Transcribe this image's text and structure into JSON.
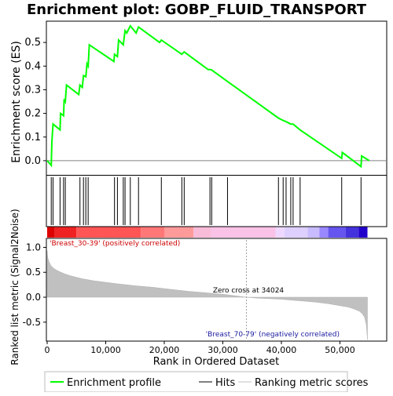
{
  "chart_data": {
    "type": "line",
    "title": "Enrichment plot: GOBP_FLUID_TRANSPORT",
    "top_panel": {
      "ylabel": "Enrichment score (ES)",
      "yticks": [
        "0.0",
        "0.1",
        "0.2",
        "0.3",
        "0.4",
        "0.5"
      ],
      "ylim": [
        -0.06,
        0.59
      ],
      "xlim": [
        0,
        58000
      ],
      "es_curve": {
        "name": "Enrichment profile",
        "color": "#00ff00",
        "x": [
          0,
          700,
          800,
          1000,
          2200,
          2300,
          2800,
          2900,
          3100,
          3300,
          5400,
          5600,
          6000,
          6200,
          6600,
          6800,
          7000,
          7200,
          11400,
          11500,
          12000,
          12200,
          13000,
          13300,
          13600,
          14200,
          15200,
          15600,
          19200,
          19500,
          23000,
          23400,
          27500,
          28000,
          30800,
          39500,
          40300,
          40800,
          41600,
          42000,
          43200,
          50300,
          50400,
          53600,
          53700,
          55000
        ],
        "y": [
          0.0,
          -0.02,
          0.08,
          0.155,
          0.13,
          0.2,
          0.19,
          0.26,
          0.25,
          0.32,
          0.28,
          0.32,
          0.31,
          0.36,
          0.355,
          0.41,
          0.4,
          0.49,
          0.42,
          0.45,
          0.44,
          0.51,
          0.49,
          0.55,
          0.54,
          0.57,
          0.54,
          0.565,
          0.5,
          0.51,
          0.45,
          0.46,
          0.385,
          0.385,
          0.335,
          0.18,
          0.17,
          0.165,
          0.155,
          0.155,
          0.13,
          0.01,
          0.035,
          -0.025,
          0.02,
          0.0
        ]
      },
      "hits": [
        700,
        1000,
        2200,
        2800,
        3100,
        5600,
        6200,
        6600,
        7000,
        11500,
        12000,
        13000,
        13300,
        14200,
        15600,
        19500,
        23000,
        23400,
        27800,
        28100,
        30800,
        39500,
        40300,
        40800,
        41600,
        42000,
        43200,
        50300,
        53600
      ]
    },
    "ranking_bar": {
      "zones": [
        {
          "to": 1300,
          "color": "#dd0000"
        },
        {
          "to": 5000,
          "color": "#ee2222"
        },
        {
          "to": 16000,
          "color": "#ff5555"
        },
        {
          "to": 20000,
          "color": "#ff7777"
        },
        {
          "to": 25000,
          "color": "#ff9a9a"
        },
        {
          "to": 28000,
          "color": "#f8bbd8"
        },
        {
          "to": 39000,
          "color": "#fac2e6"
        },
        {
          "to": 40500,
          "color": "#eed8ff"
        },
        {
          "to": 44500,
          "color": "#ddd0ff"
        },
        {
          "to": 46500,
          "color": "#c8bbff"
        },
        {
          "to": 48000,
          "color": "#9988ff"
        },
        {
          "to": 51000,
          "color": "#6655ee"
        },
        {
          "to": 53200,
          "color": "#4433dd"
        },
        {
          "to": 54700,
          "color": "#2200cc"
        }
      ]
    },
    "bottom_panel": {
      "ylabel": "Ranked list metric (Signal2Noise)",
      "xlabel": "Rank in Ordered Dataset",
      "yticks": [
        "-0.5",
        "0.0",
        "0.5",
        "1.0"
      ],
      "xticks": [
        "0",
        "10,000",
        "20,000",
        "30,000",
        "40,000",
        "50,000"
      ],
      "ylim": [
        -0.88,
        1.18
      ],
      "metric_x": [
        0,
        100,
        300,
        600,
        1000,
        1500,
        2000,
        3000,
        4000,
        6000,
        8000,
        10000,
        12000,
        15000,
        18000,
        21000,
        24000,
        27000,
        30000,
        32000,
        34024,
        36000,
        38000,
        40000,
        42000,
        44000,
        46000,
        48000,
        50000,
        51500,
        52500,
        53300,
        53800,
        54200,
        54500,
        54700
      ],
      "metric_y": [
        0.93,
        0.8,
        0.72,
        0.64,
        0.59,
        0.55,
        0.52,
        0.47,
        0.43,
        0.37,
        0.33,
        0.3,
        0.27,
        0.23,
        0.2,
        0.16,
        0.12,
        0.09,
        0.06,
        0.03,
        0.0,
        -0.02,
        -0.03,
        -0.04,
        -0.06,
        -0.08,
        -0.1,
        -0.13,
        -0.17,
        -0.2,
        -0.24,
        -0.28,
        -0.33,
        -0.4,
        -0.55,
        -0.85
      ],
      "zero_cross_label": "Zero cross at 34024",
      "zero_cross": 34024,
      "pos_label": "'Breast_30-39' (positively correlated)",
      "neg_label": "'Breast_70-79' (negatively correlated)"
    },
    "legend": {
      "items": [
        {
          "label": "Enrichment profile",
          "color": "#00ff00"
        },
        {
          "label": "Hits",
          "color": "#000000"
        },
        {
          "label": "Ranking metric scores",
          "color": "#c0c0c0"
        }
      ]
    }
  }
}
